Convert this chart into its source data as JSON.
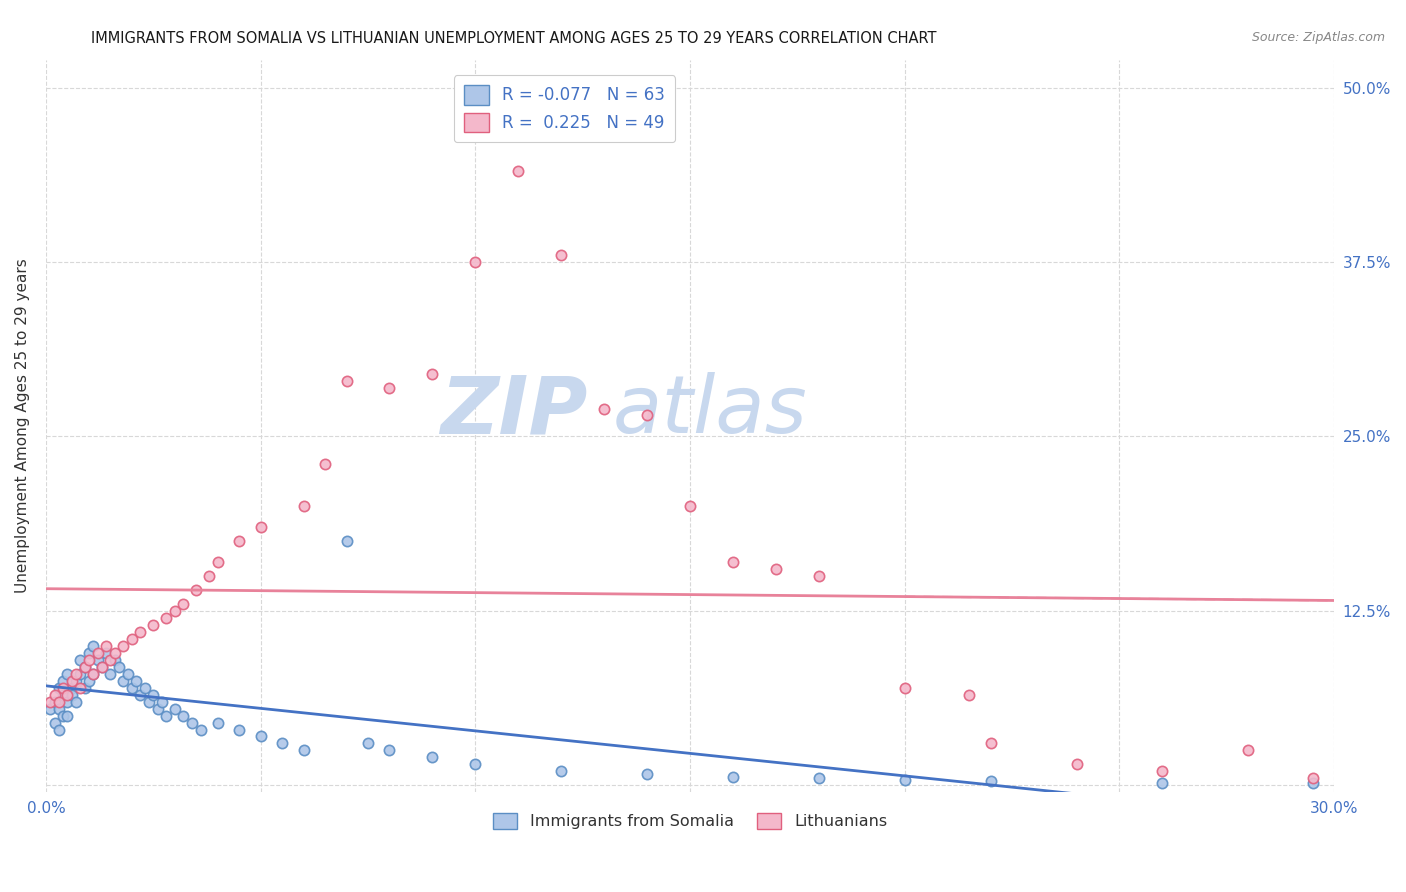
{
  "title": "IMMIGRANTS FROM SOMALIA VS LITHUANIAN UNEMPLOYMENT AMONG AGES 25 TO 29 YEARS CORRELATION CHART",
  "source": "Source: ZipAtlas.com",
  "ylabel": "Unemployment Among Ages 25 to 29 years",
  "xlim": [
    0.0,
    0.3
  ],
  "ylim": [
    -0.005,
    0.52
  ],
  "yticks": [
    0.0,
    0.125,
    0.25,
    0.375,
    0.5
  ],
  "ytick_labels": [
    "",
    "12.5%",
    "25.0%",
    "37.5%",
    "50.0%"
  ],
  "xticks": [
    0.0,
    0.05,
    0.1,
    0.15,
    0.2,
    0.25,
    0.3
  ],
  "xtick_labels_left": "0.0%",
  "xtick_labels_right": "30.0%",
  "background_color": "#ffffff",
  "grid_color": "#d8d8d8",
  "somalia_color": "#aec6e8",
  "somalia_edge_color": "#5b8ec4",
  "lithuania_color": "#f4b8cb",
  "lithuania_edge_color": "#e0607e",
  "somalia_R": -0.077,
  "somalia_N": 63,
  "lithuania_R": 0.225,
  "lithuania_N": 49,
  "somalia_line_color": "#4472c4",
  "lithuania_line_color": "#e8829a",
  "right_axis_color": "#4472c4",
  "marker_size": 55,
  "watermark_zip_color": "#c8d8ee",
  "watermark_atlas_color": "#c8d8ee",
  "somalia_x": [
    0.001,
    0.002,
    0.002,
    0.003,
    0.003,
    0.003,
    0.004,
    0.004,
    0.004,
    0.005,
    0.005,
    0.005,
    0.006,
    0.006,
    0.007,
    0.007,
    0.008,
    0.008,
    0.009,
    0.009,
    0.01,
    0.01,
    0.011,
    0.011,
    0.012,
    0.013,
    0.014,
    0.015,
    0.016,
    0.017,
    0.018,
    0.019,
    0.02,
    0.021,
    0.022,
    0.023,
    0.024,
    0.025,
    0.026,
    0.027,
    0.028,
    0.03,
    0.032,
    0.034,
    0.036,
    0.04,
    0.045,
    0.05,
    0.055,
    0.06,
    0.07,
    0.075,
    0.08,
    0.09,
    0.1,
    0.12,
    0.14,
    0.16,
    0.18,
    0.2,
    0.22,
    0.26,
    0.295
  ],
  "somalia_y": [
    0.055,
    0.06,
    0.045,
    0.07,
    0.055,
    0.04,
    0.065,
    0.05,
    0.075,
    0.06,
    0.08,
    0.05,
    0.07,
    0.065,
    0.075,
    0.06,
    0.08,
    0.09,
    0.07,
    0.085,
    0.075,
    0.095,
    0.08,
    0.1,
    0.09,
    0.085,
    0.095,
    0.08,
    0.09,
    0.085,
    0.075,
    0.08,
    0.07,
    0.075,
    0.065,
    0.07,
    0.06,
    0.065,
    0.055,
    0.06,
    0.05,
    0.055,
    0.05,
    0.045,
    0.04,
    0.045,
    0.04,
    0.035,
    0.03,
    0.025,
    0.175,
    0.03,
    0.025,
    0.02,
    0.015,
    0.01,
    0.008,
    0.006,
    0.005,
    0.004,
    0.003,
    0.002,
    0.002
  ],
  "lithuania_x": [
    0.001,
    0.002,
    0.003,
    0.004,
    0.005,
    0.006,
    0.007,
    0.008,
    0.009,
    0.01,
    0.011,
    0.012,
    0.013,
    0.014,
    0.015,
    0.016,
    0.018,
    0.02,
    0.022,
    0.025,
    0.028,
    0.03,
    0.032,
    0.035,
    0.038,
    0.04,
    0.045,
    0.05,
    0.06,
    0.065,
    0.07,
    0.08,
    0.09,
    0.1,
    0.11,
    0.12,
    0.13,
    0.14,
    0.15,
    0.16,
    0.17,
    0.18,
    0.2,
    0.215,
    0.22,
    0.24,
    0.26,
    0.28,
    0.295
  ],
  "lithuania_y": [
    0.06,
    0.065,
    0.06,
    0.07,
    0.065,
    0.075,
    0.08,
    0.07,
    0.085,
    0.09,
    0.08,
    0.095,
    0.085,
    0.1,
    0.09,
    0.095,
    0.1,
    0.105,
    0.11,
    0.115,
    0.12,
    0.125,
    0.13,
    0.14,
    0.15,
    0.16,
    0.175,
    0.185,
    0.2,
    0.23,
    0.29,
    0.285,
    0.295,
    0.375,
    0.44,
    0.38,
    0.27,
    0.265,
    0.2,
    0.16,
    0.155,
    0.15,
    0.07,
    0.065,
    0.03,
    0.015,
    0.01,
    0.025,
    0.005
  ]
}
